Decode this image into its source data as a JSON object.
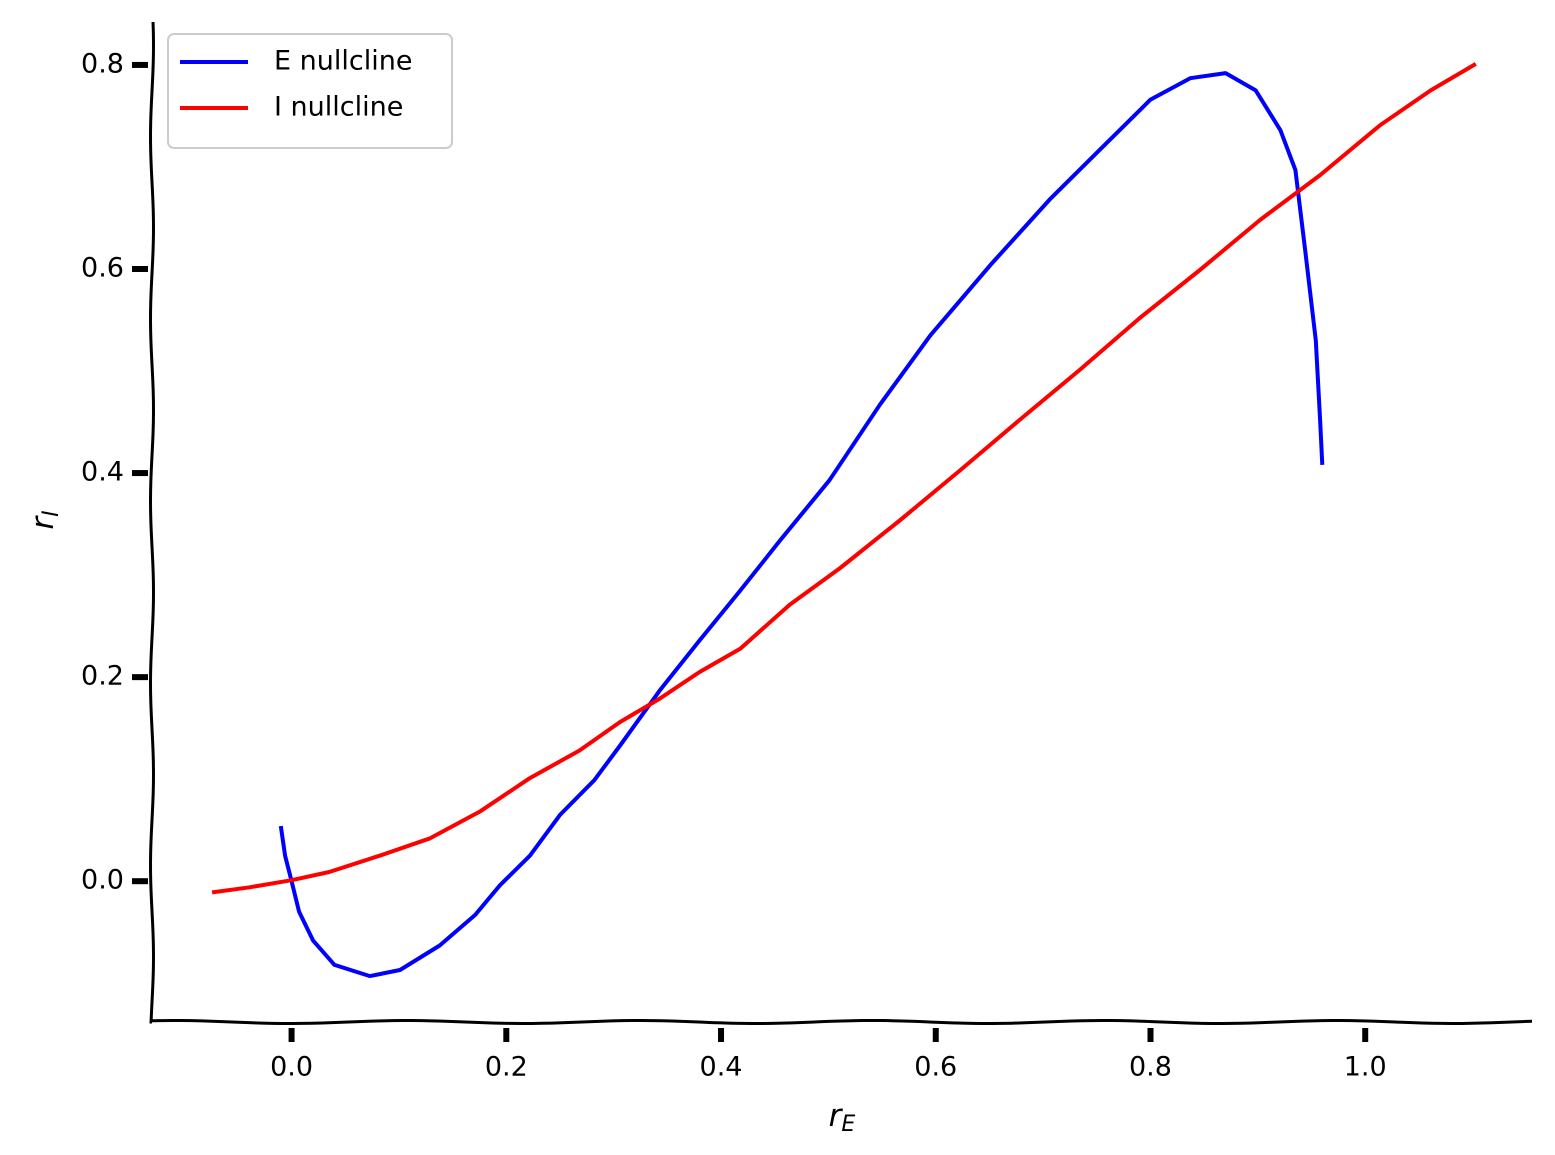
{
  "chart_data": {
    "type": "line",
    "x_label": "r",
    "x_label_subscript": "E",
    "y_label": "r",
    "y_label_subscript": "I",
    "xlim": [
      -0.13,
      1.16
    ],
    "ylim": [
      -0.138,
      0.846
    ],
    "xticks": [
      {
        "value": 0,
        "label": "0.0"
      },
      0.2,
      0.4,
      0.6,
      0.8,
      {
        "value": 1,
        "label": "1.0"
      }
    ],
    "yticks": [
      {
        "value": 0,
        "label": "0.0"
      },
      0.2,
      0.4,
      0.6,
      0.8
    ],
    "legend": "upper left",
    "grid": false,
    "series": [
      {
        "name": "E nullcline",
        "color": "#0000ff",
        "x": [
          -0.01,
          -0.006,
          0.0,
          0.007,
          0.02,
          0.04,
          0.073,
          0.101,
          0.138,
          0.171,
          0.194,
          0.222,
          0.25,
          0.282,
          0.306,
          0.343,
          0.38,
          0.418,
          0.455,
          0.501,
          0.548,
          0.595,
          0.651,
          0.706,
          0.753,
          0.8,
          0.837,
          0.87,
          0.898,
          0.921,
          0.935,
          0.944,
          0.954,
          0.958,
          0.96
        ],
        "values": [
          0.054,
          0.025,
          0.0,
          -0.03,
          -0.058,
          -0.082,
          -0.093,
          -0.087,
          -0.063,
          -0.033,
          -0.004,
          0.025,
          0.065,
          0.099,
          0.133,
          0.187,
          0.236,
          0.285,
          0.334,
          0.393,
          0.467,
          0.535,
          0.604,
          0.668,
          0.717,
          0.766,
          0.787,
          0.792,
          0.775,
          0.736,
          0.697,
          0.619,
          0.53,
          0.452,
          0.408
        ]
      },
      {
        "name": "I nullcline",
        "color": "#ff0000",
        "x": [
          -0.074,
          -0.039,
          0.0,
          0.035,
          0.082,
          0.129,
          0.175,
          0.222,
          0.268,
          0.306,
          0.343,
          0.38,
          0.418,
          0.464,
          0.511,
          0.567,
          0.623,
          0.678,
          0.734,
          0.79,
          0.846,
          0.902,
          0.958,
          1.014,
          1.061,
          1.103
        ],
        "values": [
          -0.011,
          -0.006,
          0.001,
          0.009,
          0.025,
          0.042,
          0.068,
          0.101,
          0.128,
          0.156,
          0.179,
          0.205,
          0.228,
          0.271,
          0.307,
          0.354,
          0.403,
          0.452,
          0.501,
          0.552,
          0.599,
          0.648,
          0.692,
          0.741,
          0.775,
          0.801
        ]
      }
    ]
  }
}
